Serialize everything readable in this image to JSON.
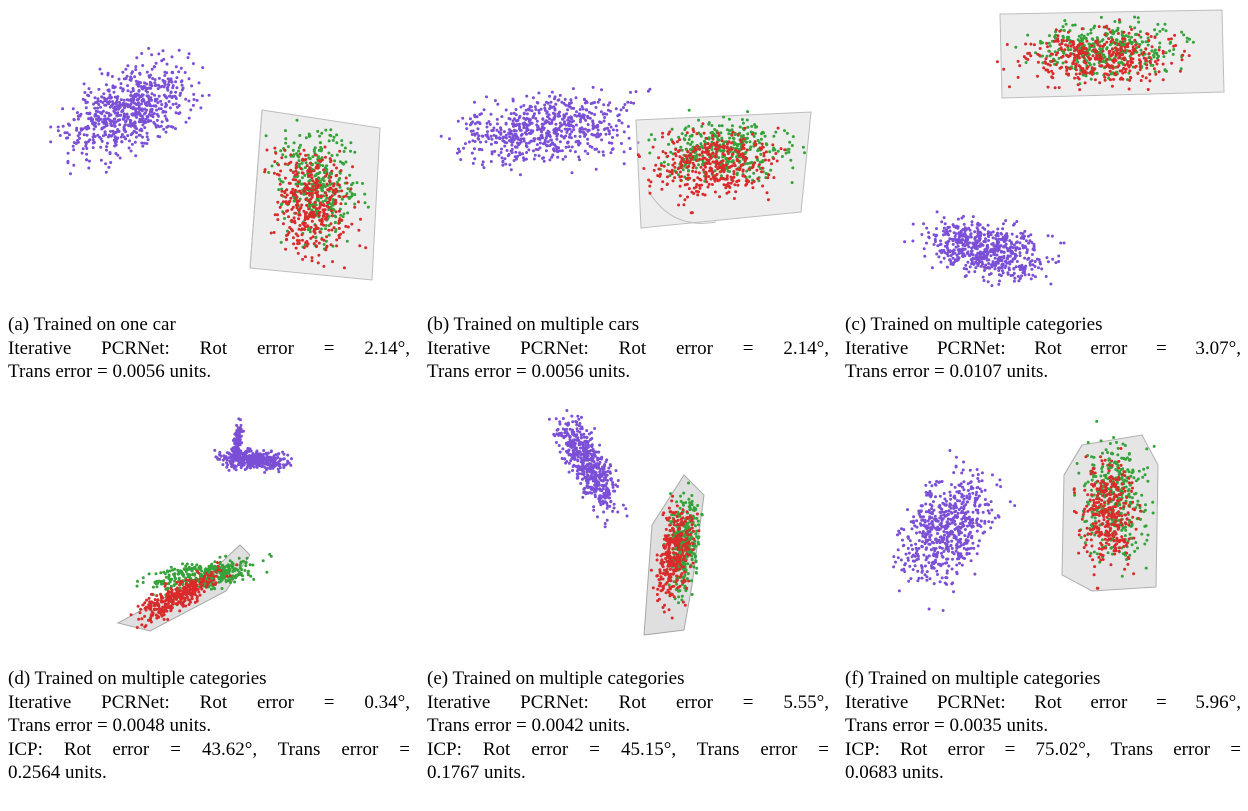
{
  "colors": {
    "source": "#7b4fd6",
    "target": "#36a33a",
    "registered": "#d92b2b",
    "mesh": "#c8c8c8"
  },
  "panels": [
    {
      "id": "a",
      "label": "(a) Trained on one car",
      "pcr_rot_prefix": "Iterative PCRNet:  Rot error = ",
      "pcr_rot_value": "2.14°,",
      "pcr_trans": "Trans error = 0.0056 units."
    },
    {
      "id": "b",
      "label": "(b) Trained on multiple cars",
      "pcr_rot_prefix": "Iterative PCRNet:  Rot error = ",
      "pcr_rot_value": "2.14°,",
      "pcr_trans": "Trans error = 0.0056 units."
    },
    {
      "id": "c",
      "label": "(c) Trained on multiple categories",
      "pcr_rot_prefix": "Iterative PCRNet:  Rot error = ",
      "pcr_rot_value": "3.07°,",
      "pcr_trans": "Trans error = 0.0107 units."
    },
    {
      "id": "d",
      "label": "(d) Trained on multiple categories",
      "pcr_rot_prefix": "Iterative PCRNet:  Rot error = ",
      "pcr_rot_value": "0.34°,",
      "pcr_trans": "Trans error = 0.0048 units.",
      "icp_line": "ICP: Rot error = 43.62°, Trans error =",
      "icp_trans": "0.2564 units."
    },
    {
      "id": "e",
      "label": "(e) Trained on multiple categories",
      "pcr_rot_prefix": "Iterative PCRNet:  Rot error = ",
      "pcr_rot_value": "5.55°,",
      "pcr_trans": "Trans error = 0.0042 units.",
      "icp_line": "ICP: Rot error = 45.15°, Trans error =",
      "icp_trans": "0.1767 units."
    },
    {
      "id": "f",
      "label": "(f) Trained on multiple categories",
      "pcr_rot_prefix": "Iterative PCRNet:  Rot error = ",
      "pcr_rot_value": "5.96°,",
      "pcr_trans": "Trans error = 0.0035 units.",
      "icp_line": "ICP: Rot error = 75.02°, Trans error =",
      "icp_trans": "0.0683 units."
    }
  ]
}
